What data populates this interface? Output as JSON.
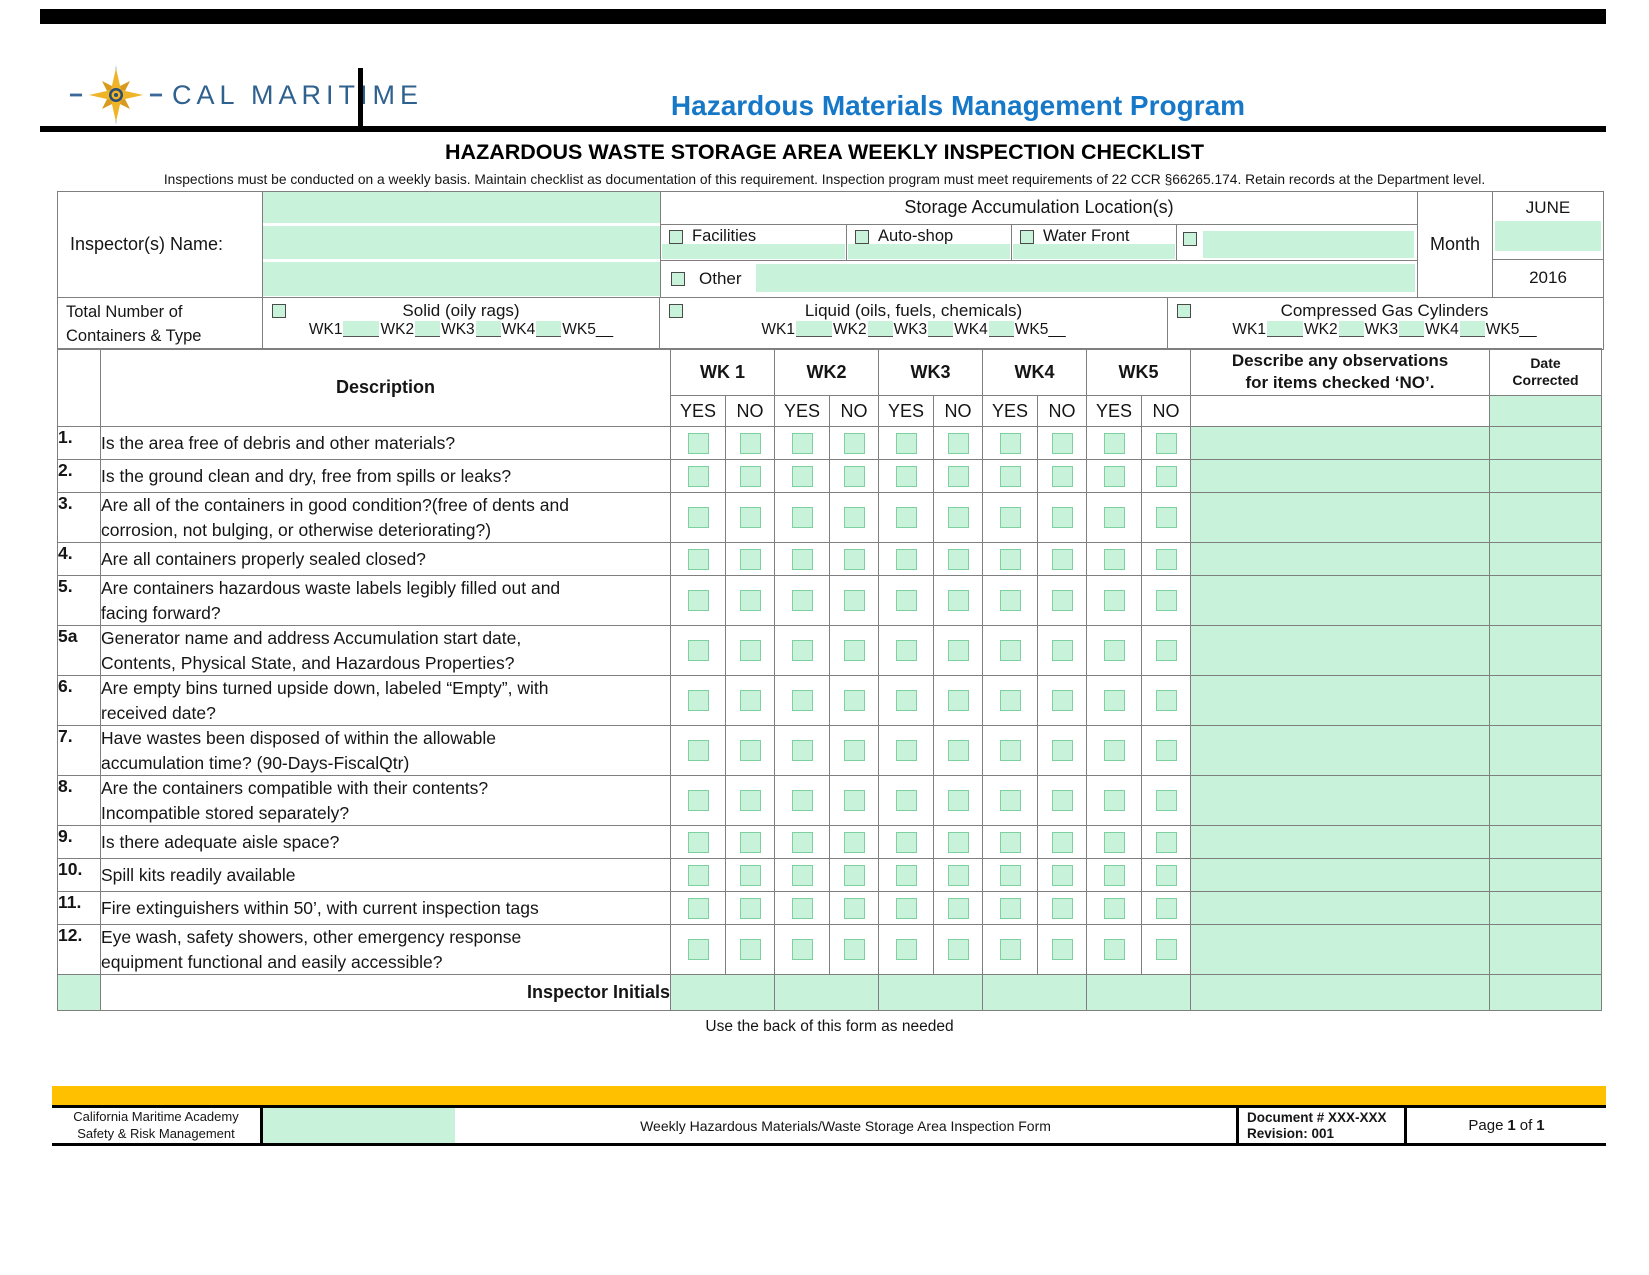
{
  "page": {
    "brand": "CAL MARITIME",
    "program_title": "Hazardous Materials Management Program",
    "form_title": "HAZARDOUS WASTE STORAGE AREA WEEKLY INSPECTION CHECKLIST",
    "instructions": "Inspections must be conducted on a weekly basis.  Maintain checklist as documentation of this requirement. Inspection program must meet requirements of 22 CCR §66265.174. Retain records at the Department level."
  },
  "header_form": {
    "inspector_label": "Inspector(s) Name:",
    "locations_title": "Storage  Accumulation Location(s)",
    "locations": [
      "Facilities",
      "Auto-shop",
      "Water Front"
    ],
    "other_label": "Other",
    "month_label": "Month",
    "month_value": "JUNE",
    "year_value": "2016"
  },
  "containers": {
    "label_line1": "Total Number of",
    "label_line2": "Containers & Type",
    "types": [
      {
        "name": "Solid (oily rags)"
      },
      {
        "name": "Liquid (oils, fuels, chemicals)"
      },
      {
        "name": "Compressed Gas Cylinders"
      }
    ],
    "weeks": [
      "WK1",
      "WK2",
      "WK3",
      "WK4",
      "WK5"
    ],
    "suffix": "__"
  },
  "checklist": {
    "description_header": "Description",
    "week_headers": [
      "WK 1",
      "WK2",
      "WK3",
      "WK4",
      "WK5"
    ],
    "yes_label": "YES",
    "no_label": "NO",
    "obs_line1": "Describe any observations",
    "obs_line2": "for items checked ‘NO’.",
    "date_line1": "Date",
    "date_line2": "Corrected",
    "rows": [
      {
        "num": "1.",
        "lines": [
          "Is the area free of debris and other materials?"
        ]
      },
      {
        "num": "2.",
        "lines": [
          "Is the ground clean and dry, free from spills or leaks?"
        ]
      },
      {
        "num": "3.",
        "lines": [
          "Are all of the containers in good condition?(free of dents and",
          "corrosion, not bulging, or otherwise deteriorating?)"
        ]
      },
      {
        "num": "4.",
        "lines": [
          "Are all containers properly sealed closed?"
        ]
      },
      {
        "num": "5.",
        "lines": [
          "Are containers hazardous waste labels legibly filled out and",
          "facing forward?"
        ]
      },
      {
        "num": "5a",
        "lines": [
          "Generator name and address Accumulation start date,",
          "Contents, Physical State, and Hazardous Properties?"
        ]
      },
      {
        "num": "6.",
        "lines": [
          "Are empty bins turned upside down, labeled “Empty”, with",
          "received date?"
        ]
      },
      {
        "num": "7.",
        "lines": [
          "Have wastes been disposed of within the allowable",
          "accumulation time? (90-Days-FiscalQtr)"
        ]
      },
      {
        "num": "8.",
        "lines": [
          "Are the containers compatible with their contents?",
          "Incompatible stored separately?"
        ]
      },
      {
        "num": "9.",
        "lines": [
          "Is there adequate aisle space?"
        ]
      },
      {
        "num": "10.",
        "lines": [
          "Spill kits readily available"
        ]
      },
      {
        "num": "11.",
        "lines": [
          "Fire extinguishers within 50’, with current inspection tags"
        ]
      },
      {
        "num": "12.",
        "lines": [
          "Eye wash, safety showers, other emergency response",
          "equipment functional and easily accessible?"
        ]
      }
    ],
    "initials_label": "Inspector Initials",
    "back_note": "Use the back of this form as needed"
  },
  "footer": {
    "org_line1": "California Maritime Academy",
    "org_line2": "Safety & Risk Management",
    "form_name": "Weekly Hazardous Materials/Waste  Storage Area Inspection Form",
    "document_line1": "Document # XXX-XXX",
    "document_line2": "Revision: 001",
    "page_pre": "Page",
    "page_num": "1",
    "page_mid": "of",
    "page_total": "1"
  },
  "colors": {
    "accent_green": "#c9f2da",
    "checkbox_border": "#7fd0a0",
    "title_blue": "#1778c8",
    "brand_blue": "#2f618e",
    "bar_orange": "#ffc000"
  }
}
